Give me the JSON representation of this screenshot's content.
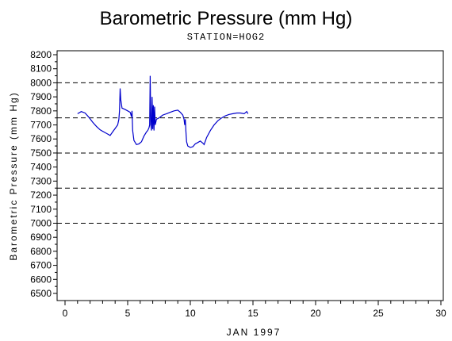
{
  "chart_data": {
    "type": "line",
    "title": "Barometric Pressure (mm Hg)",
    "subtitle": "STATION=HOG2",
    "xlabel": "JAN 1997",
    "ylabel": "Barometric Pressure (mm Hg)",
    "xlim": [
      0,
      30
    ],
    "ylim": [
      6500,
      8200
    ],
    "xticks": [
      "0",
      "5",
      "10",
      "15",
      "20",
      "25",
      "30"
    ],
    "yticks": [
      "6500",
      "6600",
      "6700",
      "6800",
      "6900",
      "7000",
      "7100",
      "7200",
      "7300",
      "7400",
      "7500",
      "7600",
      "7700",
      "7800",
      "7900",
      "8000",
      "8100",
      "8200"
    ],
    "reference_lines": [
      7000,
      7250,
      7500,
      7750,
      8000
    ],
    "grid": false,
    "line_color": "#0000cc",
    "series": [
      {
        "points": [
          [
            1.0,
            7780
          ],
          [
            1.3,
            7795
          ],
          [
            1.6,
            7785
          ],
          [
            1.9,
            7755
          ],
          [
            2.2,
            7720
          ],
          [
            2.5,
            7690
          ],
          [
            2.8,
            7665
          ],
          [
            3.1,
            7650
          ],
          [
            3.4,
            7635
          ],
          [
            3.6,
            7625
          ],
          [
            3.8,
            7650
          ],
          [
            4.0,
            7675
          ],
          [
            4.2,
            7700
          ],
          [
            4.3,
            7740
          ],
          [
            4.35,
            7800
          ],
          [
            4.4,
            7960
          ],
          [
            4.45,
            7880
          ],
          [
            4.55,
            7820
          ],
          [
            4.8,
            7810
          ],
          [
            5.0,
            7800
          ],
          [
            5.2,
            7790
          ],
          [
            5.3,
            7760
          ],
          [
            5.35,
            7800
          ],
          [
            5.4,
            7660
          ],
          [
            5.5,
            7590
          ],
          [
            5.7,
            7560
          ],
          [
            5.9,
            7565
          ],
          [
            6.1,
            7580
          ],
          [
            6.3,
            7620
          ],
          [
            6.5,
            7650
          ],
          [
            6.6,
            7660
          ],
          [
            6.7,
            7680
          ],
          [
            6.75,
            7700
          ],
          [
            6.8,
            8050
          ],
          [
            6.85,
            7700
          ],
          [
            6.9,
            7660
          ],
          [
            6.95,
            7900
          ],
          [
            7.0,
            7670
          ],
          [
            7.05,
            7840
          ],
          [
            7.1,
            7660
          ],
          [
            7.15,
            7830
          ],
          [
            7.2,
            7700
          ],
          [
            7.3,
            7740
          ],
          [
            7.5,
            7750
          ],
          [
            7.8,
            7770
          ],
          [
            8.1,
            7780
          ],
          [
            8.4,
            7790
          ],
          [
            8.7,
            7800
          ],
          [
            9.0,
            7805
          ],
          [
            9.2,
            7790
          ],
          [
            9.4,
            7770
          ],
          [
            9.5,
            7740
          ],
          [
            9.55,
            7700
          ],
          [
            9.6,
            7740
          ],
          [
            9.65,
            7650
          ],
          [
            9.7,
            7580
          ],
          [
            9.8,
            7550
          ],
          [
            10.0,
            7540
          ],
          [
            10.2,
            7545
          ],
          [
            10.4,
            7565
          ],
          [
            10.6,
            7575
          ],
          [
            10.8,
            7585
          ],
          [
            11.0,
            7570
          ],
          [
            11.1,
            7560
          ],
          [
            11.3,
            7610
          ],
          [
            11.6,
            7660
          ],
          [
            11.9,
            7700
          ],
          [
            12.2,
            7730
          ],
          [
            12.5,
            7750
          ],
          [
            12.8,
            7765
          ],
          [
            13.1,
            7775
          ],
          [
            13.4,
            7780
          ],
          [
            13.7,
            7785
          ],
          [
            14.0,
            7785
          ],
          [
            14.3,
            7780
          ],
          [
            14.5,
            7795
          ],
          [
            14.6,
            7780
          ]
        ]
      }
    ]
  }
}
